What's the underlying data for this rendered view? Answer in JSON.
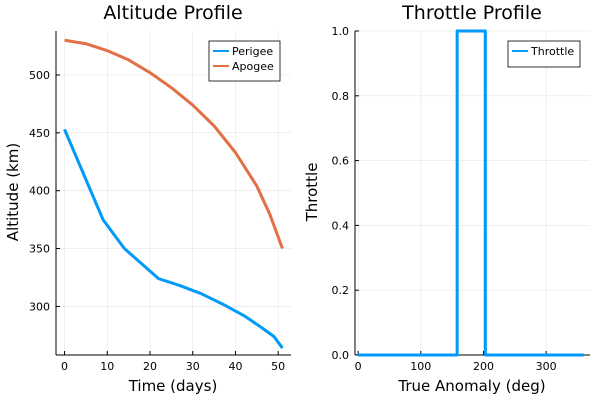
{
  "chart_data": [
    {
      "type": "line",
      "title": "Altitude Profile",
      "xlabel": "Time (days)",
      "ylabel": "Altitude (km)",
      "xlim": [
        -2,
        53
      ],
      "ylim": [
        258,
        538
      ],
      "xticks": [
        0,
        10,
        20,
        30,
        40,
        50
      ],
      "yticks": [
        300,
        350,
        400,
        450,
        500
      ],
      "grid": true,
      "legend": "top-right",
      "series": [
        {
          "name": "Perigee",
          "color": "#009af9",
          "x": [
            0,
            9,
            14,
            22,
            27,
            32,
            37,
            42,
            46,
            49,
            51
          ],
          "y": [
            453,
            375,
            350,
            324,
            318,
            311,
            302,
            292,
            282,
            274,
            264
          ]
        },
        {
          "name": "Apogee",
          "color": "#e26f46",
          "x": [
            0,
            5,
            10,
            15,
            20,
            25,
            30,
            35,
            40,
            45,
            48,
            51
          ],
          "y": [
            530,
            527,
            521,
            513,
            502,
            489,
            474,
            456,
            433,
            404,
            380,
            350
          ]
        }
      ]
    },
    {
      "type": "line",
      "title": "Throttle Profile",
      "xlabel": "True Anomaly (deg)",
      "ylabel": "Throttle",
      "xlim": [
        -5,
        370
      ],
      "ylim": [
        0,
        1
      ],
      "xticks": [
        0,
        100,
        200,
        300
      ],
      "yticks": [
        0.0,
        0.2,
        0.4,
        0.6,
        0.8,
        1.0
      ],
      "ytick_labels": [
        "0.0",
        "0.2",
        "0.4",
        "0.6",
        "0.8",
        "1.0"
      ],
      "grid": true,
      "legend": "top-right",
      "series": [
        {
          "name": "Throttle",
          "color": "#009af9",
          "x": [
            0,
            158,
            158,
            203,
            203,
            360
          ],
          "y": [
            0,
            0,
            1,
            1,
            0,
            0
          ]
        }
      ]
    }
  ]
}
